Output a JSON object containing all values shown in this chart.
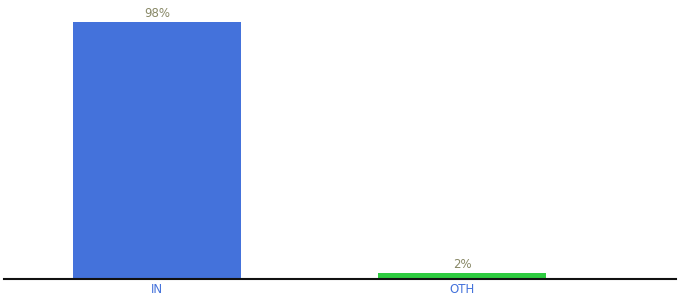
{
  "categories": [
    "IN",
    "OTH"
  ],
  "values": [
    98,
    2
  ],
  "bar_colors": [
    "#4472db",
    "#2ecc40"
  ],
  "label_color": "#888866",
  "labels": [
    "98%",
    "2%"
  ],
  "background_color": "#ffffff",
  "ylim": [
    0,
    105
  ],
  "bar_width": 0.55,
  "label_fontsize": 8.5,
  "tick_fontsize": 8.5,
  "tick_color": "#4472db",
  "axis_line_color": "#111111"
}
